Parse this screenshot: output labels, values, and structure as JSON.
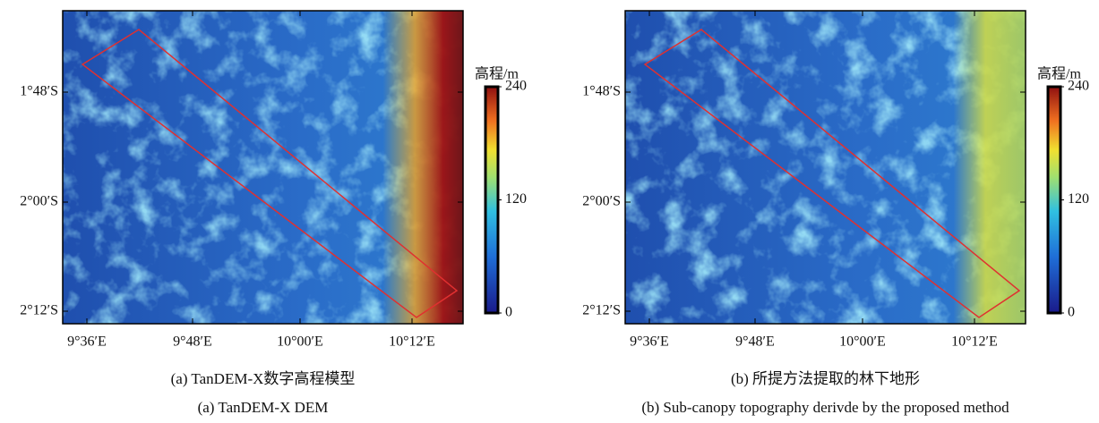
{
  "panels": [
    {
      "x_ticks": [
        "9°36′E",
        "9°48′E",
        "10°00′E",
        "10°12′E"
      ],
      "y_ticks": [
        "1°48′S",
        "2°00′S",
        "2°12′S"
      ],
      "colorbar": {
        "title": "高程/m",
        "range": [
          0,
          240
        ],
        "ticks": [
          0,
          120,
          240
        ]
      },
      "caption_cn": "(a) TanDEM-X数字高程模型",
      "caption_en": "(a) TanDEM-X DEM"
    },
    {
      "x_ticks": [
        "9°36′E",
        "9°48′E",
        "10°00′E",
        "10°12′E"
      ],
      "y_ticks": [
        "1°48′S",
        "2°00′S",
        "2°12′S"
      ],
      "colorbar": {
        "title": "高程/m",
        "range": [
          0,
          240
        ],
        "ticks": [
          0,
          120,
          240
        ]
      },
      "caption_cn": "(b) 所提方法提取的林下地形",
      "caption_en": "(b) Sub-canopy topography derivde by the proposed method"
    }
  ]
}
